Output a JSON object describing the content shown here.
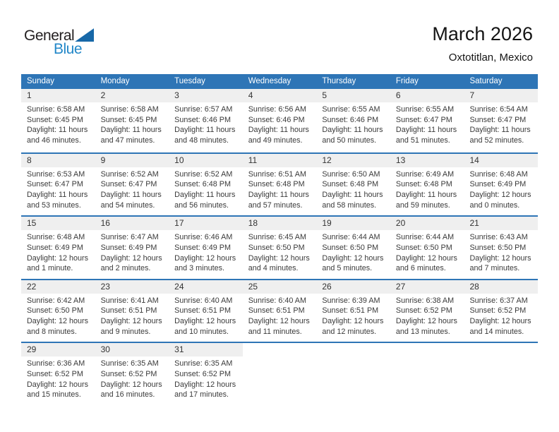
{
  "logo": {
    "general": "General",
    "blue": "Blue"
  },
  "header": {
    "title": "March 2026",
    "subtitle": "Oxtotitlan, Mexico"
  },
  "labels": {
    "sunrise": "Sunrise:",
    "sunset": "Sunset:",
    "daylight": "Daylight:"
  },
  "weekdays": [
    "Sunday",
    "Monday",
    "Tuesday",
    "Wednesday",
    "Thursday",
    "Friday",
    "Saturday"
  ],
  "colors": {
    "header_bg": "#2E75B6",
    "row_divider": "#2E75B6",
    "day_strip_bg": "#EFEFEF",
    "logo_blue_text": "#2287C8",
    "logo_triangle": "#1768A8"
  },
  "weeks": [
    {
      "days": [
        {
          "n": "1",
          "rise": "6:58 AM",
          "set": "6:45 PM",
          "day1": "11 hours",
          "day2": "and 46 minutes."
        },
        {
          "n": "2",
          "rise": "6:58 AM",
          "set": "6:45 PM",
          "day1": "11 hours",
          "day2": "and 47 minutes."
        },
        {
          "n": "3",
          "rise": "6:57 AM",
          "set": "6:46 PM",
          "day1": "11 hours",
          "day2": "and 48 minutes."
        },
        {
          "n": "4",
          "rise": "6:56 AM",
          "set": "6:46 PM",
          "day1": "11 hours",
          "day2": "and 49 minutes."
        },
        {
          "n": "5",
          "rise": "6:55 AM",
          "set": "6:46 PM",
          "day1": "11 hours",
          "day2": "and 50 minutes."
        },
        {
          "n": "6",
          "rise": "6:55 AM",
          "set": "6:47 PM",
          "day1": "11 hours",
          "day2": "and 51 minutes."
        },
        {
          "n": "7",
          "rise": "6:54 AM",
          "set": "6:47 PM",
          "day1": "11 hours",
          "day2": "and 52 minutes."
        }
      ]
    },
    {
      "days": [
        {
          "n": "8",
          "rise": "6:53 AM",
          "set": "6:47 PM",
          "day1": "11 hours",
          "day2": "and 53 minutes."
        },
        {
          "n": "9",
          "rise": "6:52 AM",
          "set": "6:47 PM",
          "day1": "11 hours",
          "day2": "and 54 minutes."
        },
        {
          "n": "10",
          "rise": "6:52 AM",
          "set": "6:48 PM",
          "day1": "11 hours",
          "day2": "and 56 minutes."
        },
        {
          "n": "11",
          "rise": "6:51 AM",
          "set": "6:48 PM",
          "day1": "11 hours",
          "day2": "and 57 minutes."
        },
        {
          "n": "12",
          "rise": "6:50 AM",
          "set": "6:48 PM",
          "day1": "11 hours",
          "day2": "and 58 minutes."
        },
        {
          "n": "13",
          "rise": "6:49 AM",
          "set": "6:48 PM",
          "day1": "11 hours",
          "day2": "and 59 minutes."
        },
        {
          "n": "14",
          "rise": "6:48 AM",
          "set": "6:49 PM",
          "day1": "12 hours",
          "day2": "and 0 minutes."
        }
      ]
    },
    {
      "days": [
        {
          "n": "15",
          "rise": "6:48 AM",
          "set": "6:49 PM",
          "day1": "12 hours",
          "day2": "and 1 minute."
        },
        {
          "n": "16",
          "rise": "6:47 AM",
          "set": "6:49 PM",
          "day1": "12 hours",
          "day2": "and 2 minutes."
        },
        {
          "n": "17",
          "rise": "6:46 AM",
          "set": "6:49 PM",
          "day1": "12 hours",
          "day2": "and 3 minutes."
        },
        {
          "n": "18",
          "rise": "6:45 AM",
          "set": "6:50 PM",
          "day1": "12 hours",
          "day2": "and 4 minutes."
        },
        {
          "n": "19",
          "rise": "6:44 AM",
          "set": "6:50 PM",
          "day1": "12 hours",
          "day2": "and 5 minutes."
        },
        {
          "n": "20",
          "rise": "6:44 AM",
          "set": "6:50 PM",
          "day1": "12 hours",
          "day2": "and 6 minutes."
        },
        {
          "n": "21",
          "rise": "6:43 AM",
          "set": "6:50 PM",
          "day1": "12 hours",
          "day2": "and 7 minutes."
        }
      ]
    },
    {
      "days": [
        {
          "n": "22",
          "rise": "6:42 AM",
          "set": "6:50 PM",
          "day1": "12 hours",
          "day2": "and 8 minutes."
        },
        {
          "n": "23",
          "rise": "6:41 AM",
          "set": "6:51 PM",
          "day1": "12 hours",
          "day2": "and 9 minutes."
        },
        {
          "n": "24",
          "rise": "6:40 AM",
          "set": "6:51 PM",
          "day1": "12 hours",
          "day2": "and 10 minutes."
        },
        {
          "n": "25",
          "rise": "6:40 AM",
          "set": "6:51 PM",
          "day1": "12 hours",
          "day2": "and 11 minutes."
        },
        {
          "n": "26",
          "rise": "6:39 AM",
          "set": "6:51 PM",
          "day1": "12 hours",
          "day2": "and 12 minutes."
        },
        {
          "n": "27",
          "rise": "6:38 AM",
          "set": "6:52 PM",
          "day1": "12 hours",
          "day2": "and 13 minutes."
        },
        {
          "n": "28",
          "rise": "6:37 AM",
          "set": "6:52 PM",
          "day1": "12 hours",
          "day2": "and 14 minutes."
        }
      ]
    },
    {
      "days": [
        {
          "n": "29",
          "rise": "6:36 AM",
          "set": "6:52 PM",
          "day1": "12 hours",
          "day2": "and 15 minutes."
        },
        {
          "n": "30",
          "rise": "6:35 AM",
          "set": "6:52 PM",
          "day1": "12 hours",
          "day2": "and 16 minutes."
        },
        {
          "n": "31",
          "rise": "6:35 AM",
          "set": "6:52 PM",
          "day1": "12 hours",
          "day2": "and 17 minutes."
        },
        {},
        {},
        {},
        {}
      ]
    }
  ]
}
